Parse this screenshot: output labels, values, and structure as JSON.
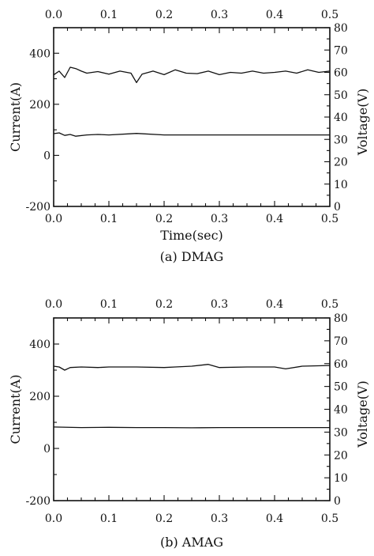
{
  "chart_data": [
    {
      "type": "line",
      "caption": "(a) DMAG",
      "xlabel": "Time(sec)",
      "ylabel_left": "Current(A)",
      "ylabel_right": "Voltage(V)",
      "xlim": [
        0.0,
        0.5
      ],
      "ylim_left": [
        -200,
        500
      ],
      "ylim_right": [
        0,
        80
      ],
      "x_ticks_bottom": [
        "0.0",
        "0.1",
        "0.2",
        "0.3",
        "0.4",
        "0.5"
      ],
      "x_ticks_top": [
        "0.0",
        "0.1",
        "0.2",
        "0.3",
        "0.4",
        "0.5"
      ],
      "y_ticks_left": [
        "400",
        "200",
        "0",
        "-200"
      ],
      "y_ticks_right": [
        "80",
        "70",
        "60",
        "50",
        "40",
        "30",
        "20",
        "10",
        "0"
      ],
      "grid": false,
      "series": [
        {
          "axis": "left",
          "x": [
            0.0,
            0.01,
            0.02,
            0.03,
            0.04,
            0.05,
            0.06,
            0.08,
            0.1,
            0.12,
            0.14,
            0.15,
            0.16,
            0.18,
            0.2,
            0.22,
            0.24,
            0.26,
            0.28,
            0.3,
            0.32,
            0.34,
            0.36,
            0.38,
            0.4,
            0.42,
            0.44,
            0.46,
            0.48,
            0.5
          ],
          "values": [
            315,
            330,
            305,
            345,
            340,
            330,
            322,
            328,
            318,
            330,
            322,
            285,
            318,
            330,
            316,
            335,
            322,
            320,
            330,
            316,
            325,
            322,
            330,
            322,
            325,
            330,
            322,
            335,
            325,
            330
          ]
        },
        {
          "axis": "left",
          "x": [
            0.0,
            0.01,
            0.02,
            0.03,
            0.04,
            0.06,
            0.08,
            0.1,
            0.15,
            0.2,
            0.25,
            0.3,
            0.35,
            0.4,
            0.45,
            0.5
          ],
          "values": [
            85,
            88,
            78,
            82,
            75,
            80,
            82,
            80,
            86,
            80,
            80,
            80,
            80,
            80,
            80,
            80
          ]
        }
      ]
    },
    {
      "type": "line",
      "caption": "(b) AMAG",
      "xlabel": "",
      "ylabel_left": "Current(A)",
      "ylabel_right": "Voltage(V)",
      "xlim": [
        0.0,
        0.5
      ],
      "ylim_left": [
        -200,
        500
      ],
      "ylim_right": [
        0,
        80
      ],
      "x_ticks_bottom": [
        "0.0",
        "0.1",
        "0.2",
        "0.3",
        "0.4",
        "0.5"
      ],
      "x_ticks_top": [
        "0.0",
        "0.1",
        "0.2",
        "0.3",
        "0.4",
        "0.5"
      ],
      "y_ticks_left": [
        "400",
        "200",
        "0",
        "-200"
      ],
      "y_ticks_right": [
        "80",
        "70",
        "60",
        "50",
        "40",
        "30",
        "20",
        "10",
        "0"
      ],
      "grid": false,
      "series": [
        {
          "axis": "left",
          "x": [
            0.0,
            0.01,
            0.02,
            0.03,
            0.05,
            0.08,
            0.1,
            0.15,
            0.2,
            0.22,
            0.25,
            0.28,
            0.3,
            0.35,
            0.4,
            0.42,
            0.45,
            0.5
          ],
          "values": [
            315,
            312,
            300,
            310,
            312,
            310,
            312,
            312,
            310,
            312,
            315,
            322,
            310,
            312,
            312,
            305,
            315,
            318
          ]
        },
        {
          "axis": "left",
          "x": [
            0.0,
            0.05,
            0.1,
            0.15,
            0.2,
            0.25,
            0.3,
            0.35,
            0.4,
            0.45,
            0.5
          ],
          "values": [
            82,
            80,
            81,
            80,
            80,
            79,
            80,
            80,
            80,
            80,
            80
          ]
        }
      ]
    }
  ]
}
